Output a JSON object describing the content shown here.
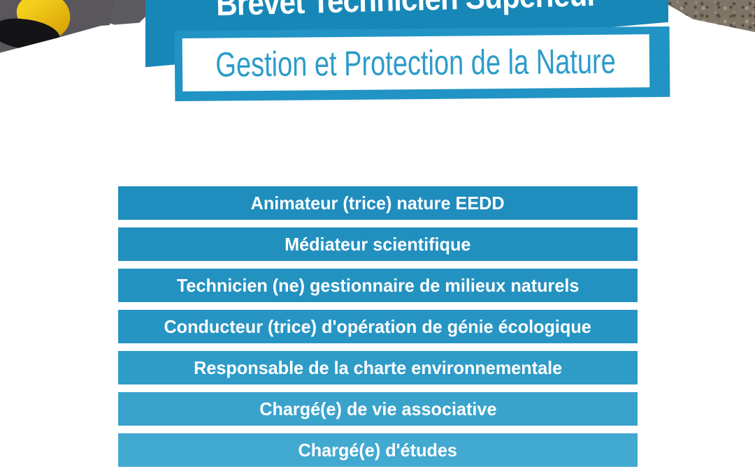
{
  "poster": {
    "banner": {
      "title": "Brevet Technicien Supérieur",
      "bg_color": "#1787b8",
      "text_color": "#ffffff"
    },
    "program": {
      "label": "Gestion et Protection de la Nature",
      "frame_color": "#2193c4",
      "panel_color": "#ffffff",
      "text_color": "#2d9cca"
    },
    "jobs": {
      "text_color": "#ffffff",
      "items": [
        {
          "label": "Animateur (trice) nature EEDD",
          "color": "#1f8dbd"
        },
        {
          "label": "Médiateur scientifique",
          "color": "#2190bf"
        },
        {
          "label": "Technicien (ne) gestionnaire de milieux naturels",
          "color": "#2492c1"
        },
        {
          "label": "Conducteur (trice) d'opération de génie écologique",
          "color": "#2795c4"
        },
        {
          "label": "Responsable de la charte environnementale",
          "color": "#2f9cc8"
        },
        {
          "label": "Chargé(e) de vie associative",
          "color": "#3aa3cc"
        },
        {
          "label": "Chargé(e) d'études",
          "color": "#42a9d0"
        }
      ]
    },
    "photos": {
      "top_left": {
        "jacket_color": "#59575b",
        "arm_color": "#5c5b5f",
        "kayak_color": "#edc30c",
        "shadow_color": "#141417"
      },
      "top_right": {
        "base_color": "#7e7567"
      }
    }
  }
}
